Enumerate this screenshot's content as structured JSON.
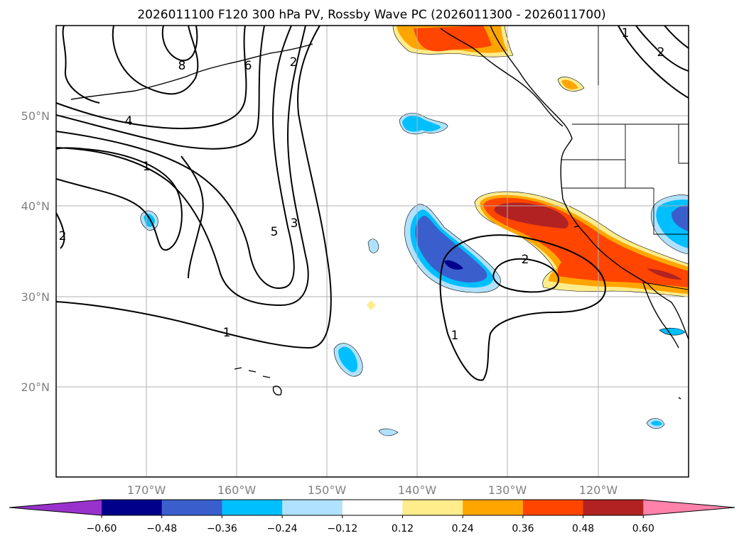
{
  "title": "2026011100 F120 300 hPa PV, Rossby Wave PC (2026011300 - 2026011700)",
  "axes": {
    "lat_labels": [
      "50°N",
      "40°N",
      "30°N",
      "20°N"
    ],
    "lon_labels": [
      "170°W",
      "160°W",
      "150°W",
      "140°W",
      "130°W",
      "120°W"
    ],
    "lon_range": [
      -180,
      -110
    ],
    "lat_range": [
      10,
      60
    ],
    "gridlines": true
  },
  "colorbar": {
    "ticks": [
      "−0.60",
      "−0.48",
      "−0.36",
      "−0.24",
      "−0.12",
      "0.12",
      "0.24",
      "0.36",
      "0.48",
      "0.60"
    ],
    "colors": [
      "#9932cc",
      "#00008b",
      "#3a5fcd",
      "#00bfff",
      "#b0e2ff",
      "#ffffff",
      "#ffec8b",
      "#ffa500",
      "#ff4500",
      "#b22222",
      "#ff82ab"
    ],
    "extend": "both"
  },
  "contour_labels": [
    "8",
    "6",
    "4",
    "2",
    "1",
    "5",
    "3",
    "2",
    "1",
    "2",
    "1",
    "1",
    "2"
  ],
  "colors": {
    "contour": "#000000",
    "grid": "#b0b0b0",
    "coast": "#000000",
    "tick_label": "#808080"
  }
}
